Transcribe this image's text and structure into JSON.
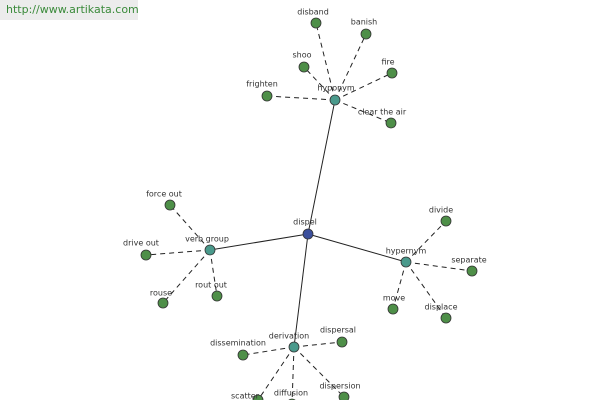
{
  "header": {
    "url": "http://www.artikata.com"
  },
  "graph": {
    "center": "dispel",
    "groups": [
      {
        "label": "hyponym",
        "children": [
          "disband",
          "banish",
          "shoo",
          "fire",
          "frighten",
          "clear the air"
        ]
      },
      {
        "label": "verb group",
        "children": [
          "force out",
          "drive out",
          "rouse",
          "rout out"
        ]
      },
      {
        "label": "hypernym",
        "children": [
          "divide",
          "separate",
          "move",
          "displace"
        ]
      },
      {
        "label": "derivation",
        "children": [
          "dissemination",
          "dispersal",
          "scatter",
          "diffusion",
          "dispersion"
        ]
      }
    ]
  }
}
